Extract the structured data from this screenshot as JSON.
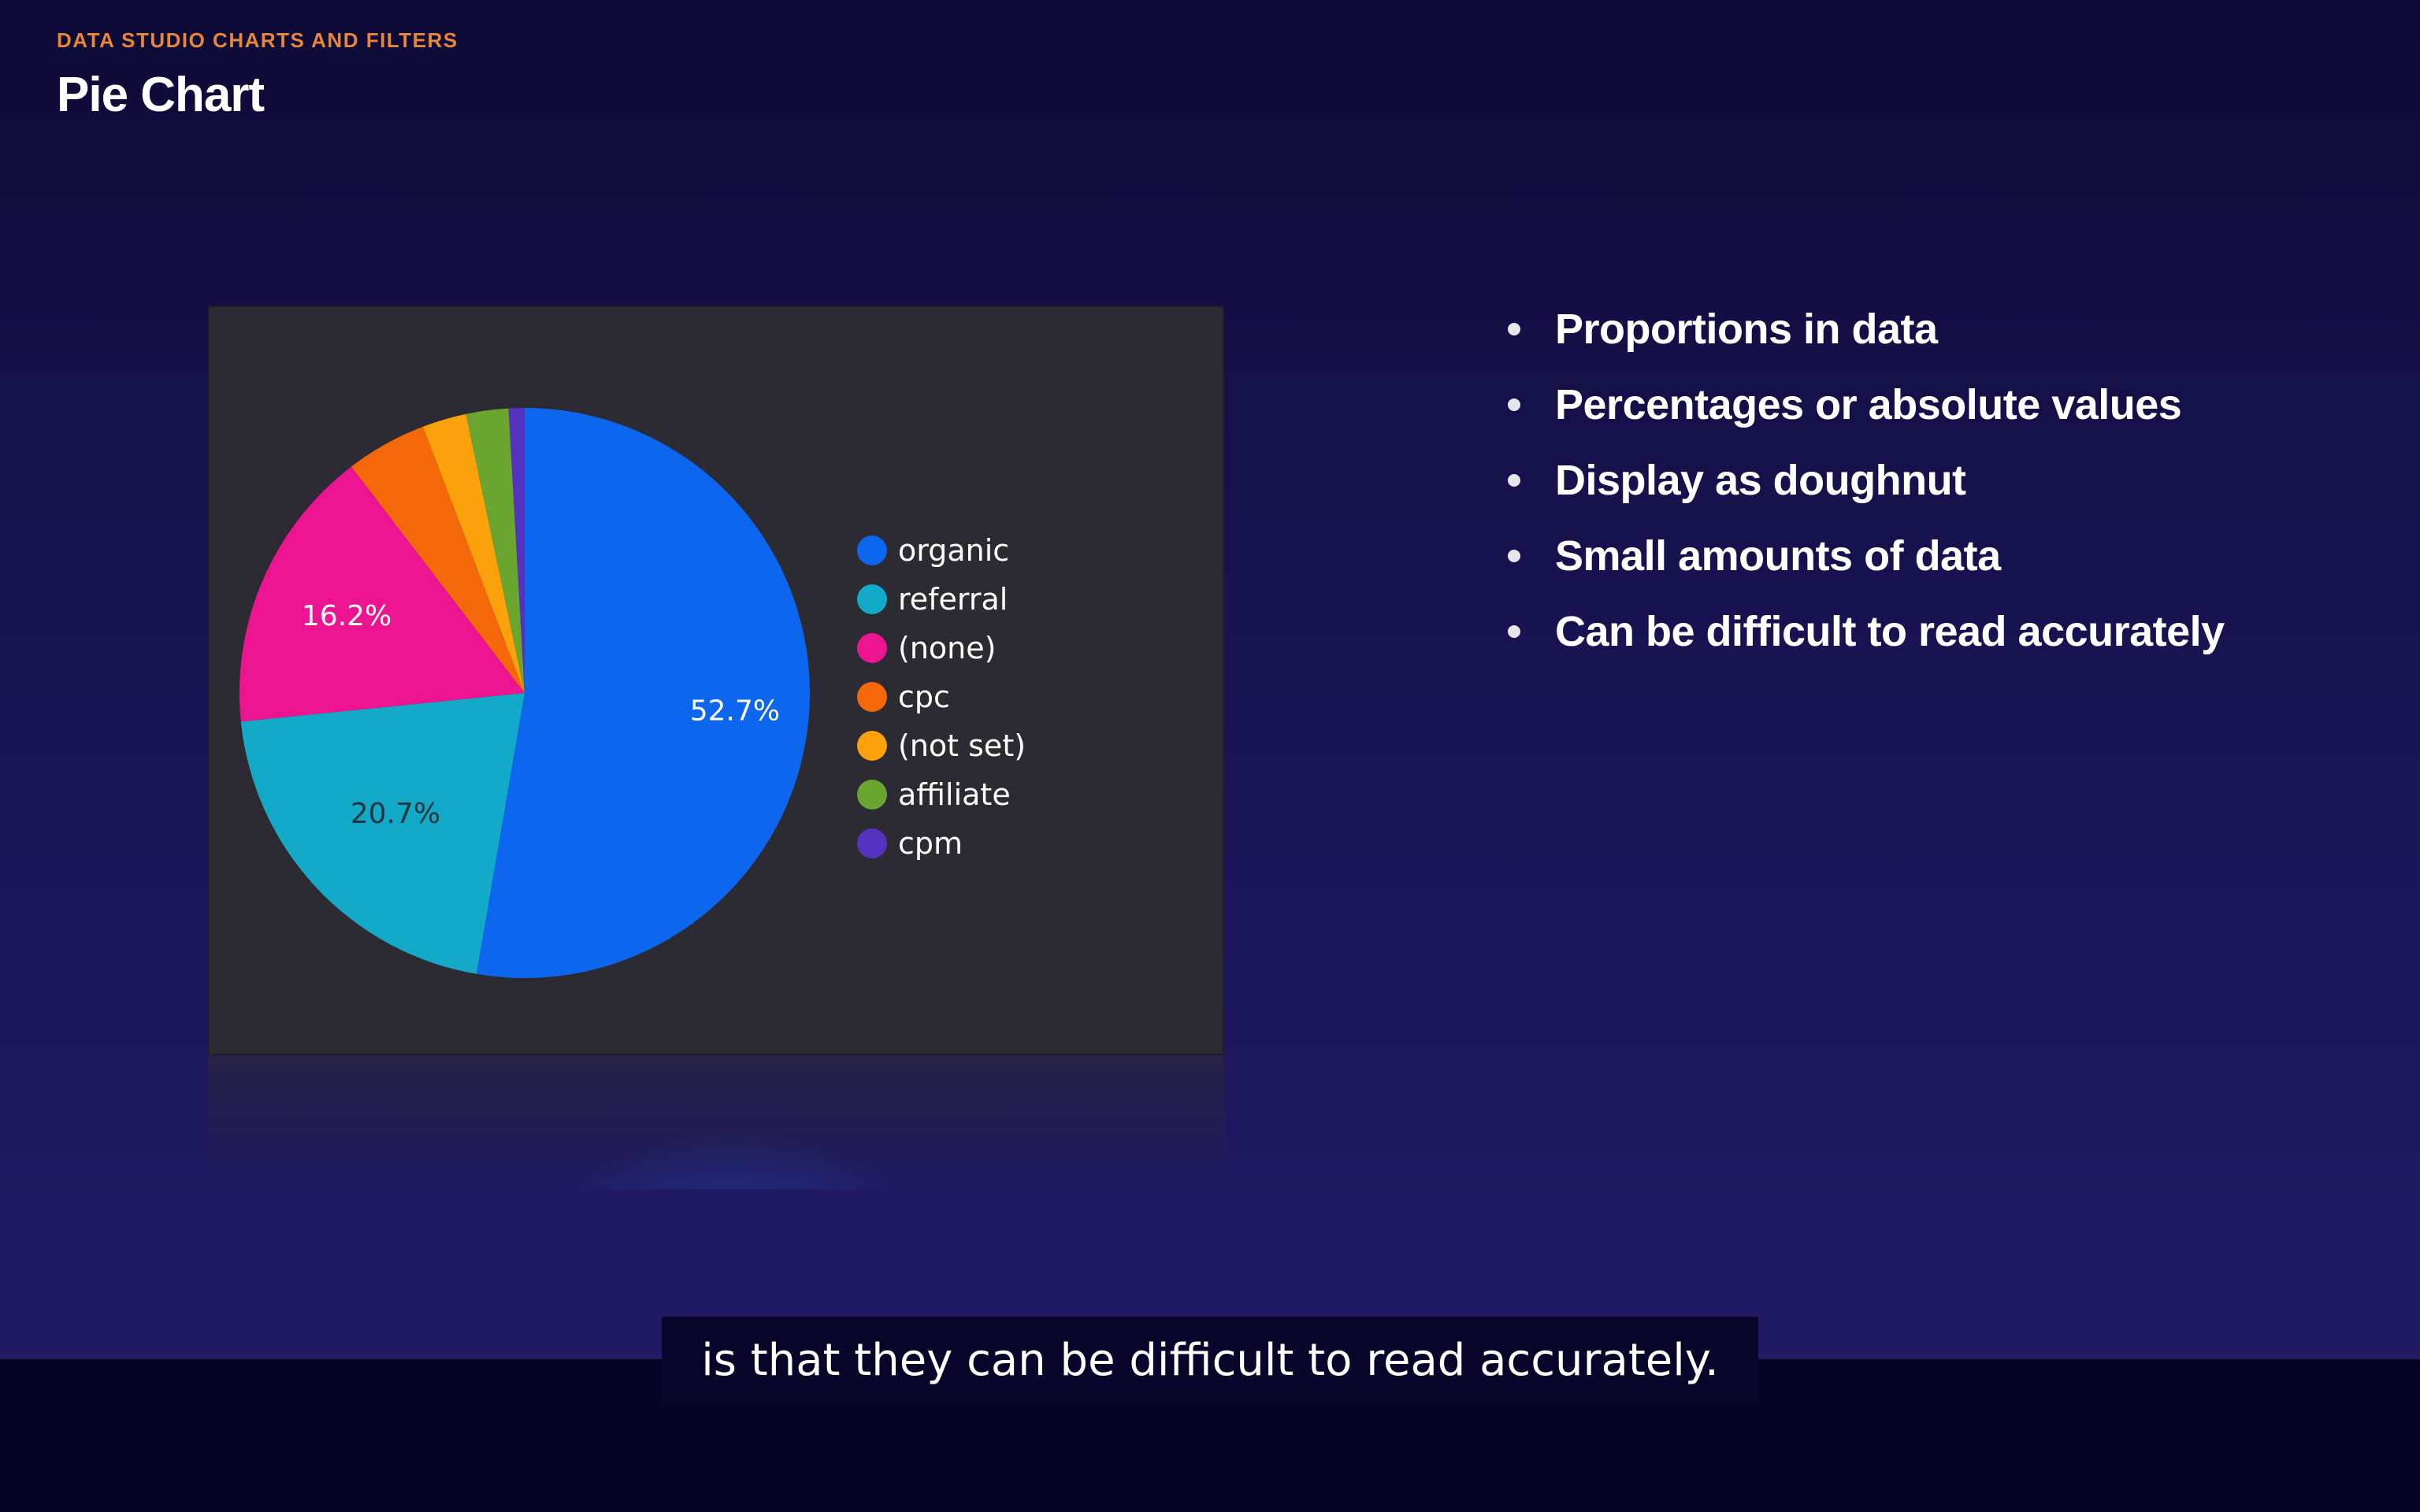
{
  "header": {
    "eyebrow": "DATA STUDIO CHARTS AND FILTERS",
    "title": "Pie Chart"
  },
  "chart_data": {
    "type": "pie",
    "categories": [
      "organic",
      "referral",
      "(none)",
      "cpc",
      "(not set)",
      "affiliate",
      "cpm"
    ],
    "values": [
      52.7,
      20.7,
      16.2,
      4.6,
      2.5,
      2.4,
      0.9
    ],
    "data_labels": [
      "52.7%",
      "20.7%",
      "16.2%",
      "",
      "",
      "",
      ""
    ],
    "colors": [
      "#0d66ee",
      "#12aac8",
      "#ec1490",
      "#f4680a",
      "#fba10c",
      "#6aa52f",
      "#5532c0"
    ],
    "label_colors": [
      "#ffffff",
      "#24343e",
      "#ffffff",
      "#ffffff",
      "#ffffff",
      "#ffffff",
      "#ffffff"
    ],
    "legend_position": "right",
    "start_angle_deg": 0,
    "direction": "clockwise"
  },
  "legend": {
    "items": [
      {
        "label": "organic"
      },
      {
        "label": "referral"
      },
      {
        "label": "(none)"
      },
      {
        "label": "cpc"
      },
      {
        "label": "(not set)"
      },
      {
        "label": "affiliate"
      },
      {
        "label": "cpm"
      }
    ]
  },
  "bullets": [
    "Proportions in data",
    "Percentages or absolute values",
    "Display as doughnut",
    "Small amounts of data",
    "Can be difficult to read accurately"
  ],
  "caption": "is that they can be difficult to read accurately."
}
